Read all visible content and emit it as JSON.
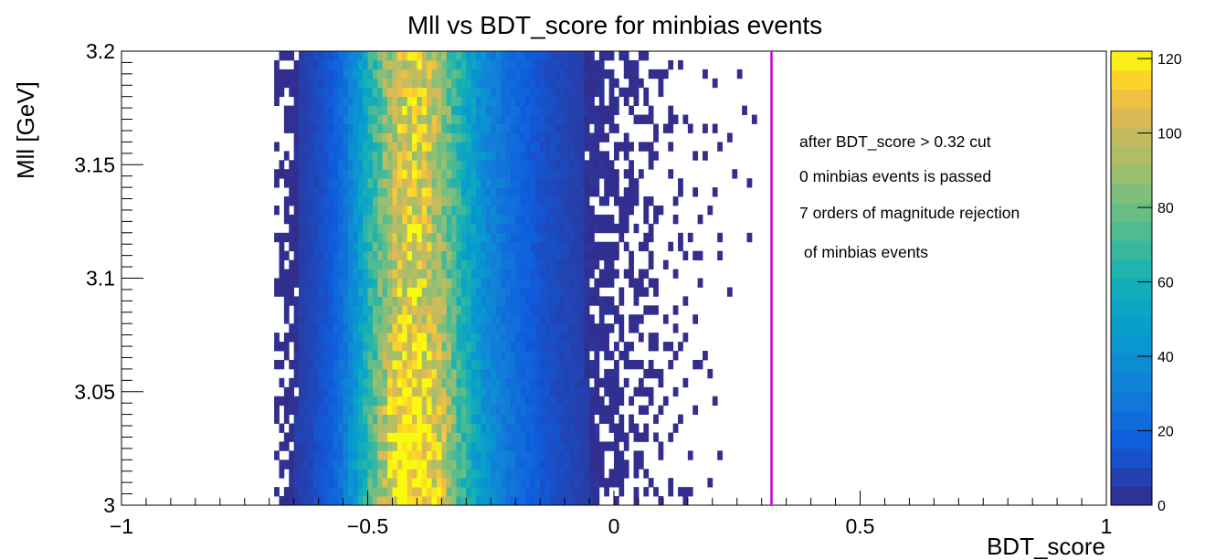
{
  "chart_data": {
    "type": "heatmap",
    "title": "Mll vs BDT_score for minbias events",
    "xlabel": "BDT_score",
    "ylabel": "Mll [GeV]",
    "xlim": [
      -1,
      1
    ],
    "ylim": [
      3.0,
      3.2
    ],
    "x_ticks": [
      -1,
      -0.5,
      0,
      0.5,
      1
    ],
    "x_tick_labels": [
      "−1",
      "−0.5",
      "0",
      "0.5",
      "1"
    ],
    "y_ticks": [
      3.0,
      3.05,
      3.1,
      3.15,
      3.2
    ],
    "y_tick_labels": [
      "3",
      "3.05",
      "3.1",
      "3.15",
      "3.2"
    ],
    "z_range": [
      0,
      122
    ],
    "z_ticks": [
      0,
      20,
      40,
      60,
      80,
      100,
      120
    ],
    "z_tick_labels": [
      "0",
      "20",
      "40",
      "60",
      "80",
      "100",
      "120"
    ],
    "colormap": "parula",
    "bins": {
      "x_bin_width": 0.01,
      "y_bin_width": 0.004,
      "occupied_x_range": [
        -0.69,
        0.29
      ],
      "peak_bdt_score": -0.41,
      "peak_mll": 3.02,
      "max_count": 122
    },
    "density_profile_x": [
      [
        -0.69,
        2
      ],
      [
        -0.66,
        4
      ],
      [
        -0.62,
        8
      ],
      [
        -0.58,
        14
      ],
      [
        -0.55,
        25
      ],
      [
        -0.52,
        45
      ],
      [
        -0.5,
        62
      ],
      [
        -0.47,
        85
      ],
      [
        -0.44,
        105
      ],
      [
        -0.41,
        112
      ],
      [
        -0.38,
        106
      ],
      [
        -0.35,
        92
      ],
      [
        -0.32,
        70
      ],
      [
        -0.29,
        52
      ],
      [
        -0.26,
        38
      ],
      [
        -0.22,
        26
      ],
      [
        -0.18,
        18
      ],
      [
        -0.14,
        12
      ],
      [
        -0.1,
        9
      ],
      [
        -0.06,
        6
      ],
      [
        -0.02,
        4
      ],
      [
        0.02,
        3
      ],
      [
        0.06,
        2
      ],
      [
        0.1,
        1.2
      ],
      [
        0.15,
        0.6
      ],
      [
        0.2,
        0.25
      ],
      [
        0.25,
        0.1
      ],
      [
        0.29,
        0.05
      ]
    ],
    "cut_line": {
      "x": 0.32,
      "color": "#c800d6"
    },
    "annotations": [
      "after BDT_score > 0.32 cut",
      "0 minbias events is passed",
      "7 orders of magnitude rejection",
      " of minbias events"
    ]
  }
}
